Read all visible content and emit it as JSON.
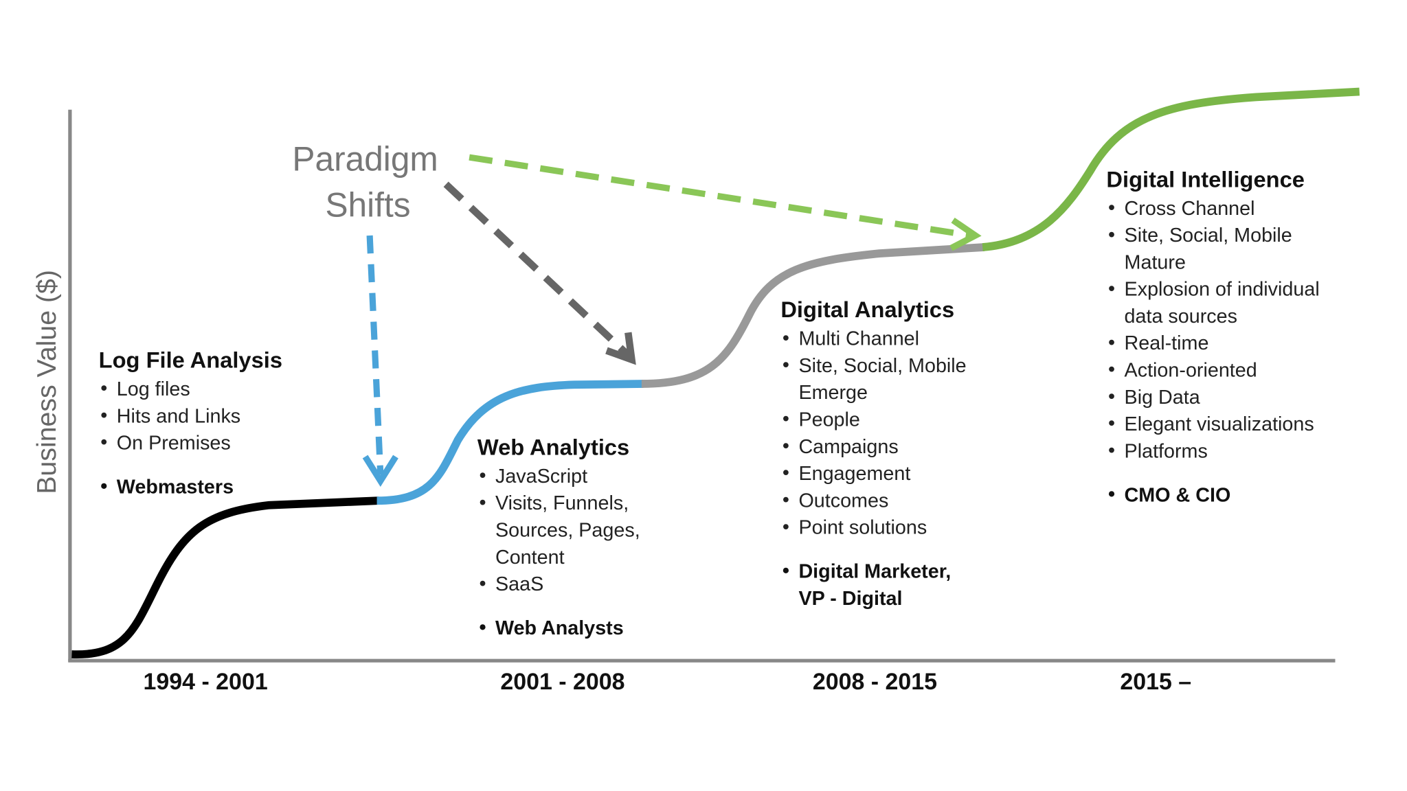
{
  "axis_label": "Business Value ($)",
  "annotation": [
    "Paradigm",
    "Shifts"
  ],
  "eras": [
    {
      "period": "1994 - 2001",
      "title": "Log File Analysis",
      "bullets": [
        [
          "Log files"
        ],
        [
          "Hits and Links"
        ],
        [
          "On Premises"
        ]
      ],
      "roles": [
        [
          "Webmasters"
        ]
      ]
    },
    {
      "period": "2001 - 2008",
      "title": "Web Analytics",
      "bullets": [
        [
          "JavaScript"
        ],
        [
          "Visits, Funnels,",
          "Sources, Pages,",
          "Content"
        ],
        [
          "SaaS"
        ]
      ],
      "roles": [
        [
          "Web Analysts"
        ]
      ]
    },
    {
      "period": "2008 - 2015",
      "title": "Digital Analytics",
      "bullets": [
        [
          "Multi Channel"
        ],
        [
          "Site, Social, Mobile",
          "Emerge"
        ],
        [
          "People"
        ],
        [
          "Campaigns"
        ],
        [
          "Engagement"
        ],
        [
          "Outcomes"
        ],
        [
          "Point solutions"
        ]
      ],
      "roles": [
        [
          "Digital Marketer,",
          "VP - Digital"
        ]
      ]
    },
    {
      "period": "2015 –",
      "title": "Digital Intelligence",
      "bullets": [
        [
          "Cross Channel"
        ],
        [
          "Site, Social, Mobile",
          "Mature"
        ],
        [
          "Explosion of individual",
          "data sources"
        ],
        [
          "Real-time"
        ],
        [
          "Action-oriented"
        ],
        [
          "Big Data"
        ],
        [
          "Elegant visualizations"
        ],
        [
          "Platforms"
        ]
      ],
      "roles": [
        [
          "CMO & CIO"
        ]
      ]
    }
  ]
}
